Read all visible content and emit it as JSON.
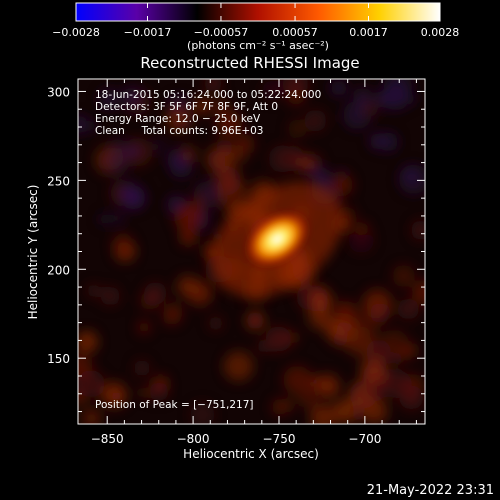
{
  "chart_data": {
    "type": "heatmap",
    "title": "Reconstructed RHESSI Image",
    "xlabel": "Heliocentric X (arcsec)",
    "ylabel": "Heliocentric Y (arcsec)",
    "xlim": [
      -867,
      -665
    ],
    "ylim": [
      113,
      307
    ],
    "x_ticks": [
      -850,
      -800,
      -750,
      -700
    ],
    "y_ticks": [
      150,
      200,
      250,
      300
    ],
    "x_tick_labels": [
      "−850",
      "−800",
      "−750",
      "−700"
    ],
    "y_tick_labels": [
      "150",
      "200",
      "250",
      "300"
    ],
    "colorbar": {
      "range": [
        -0.0028,
        0.0028
      ],
      "ticks": [
        -0.0028,
        -0.0017,
        -0.00057,
        0.00057,
        0.0017,
        0.0028
      ],
      "tick_labels": [
        "−0.0028",
        "−0.0017",
        "−0.00057",
        "0.00057",
        "0.0017",
        "0.0028"
      ],
      "units_label": "(photons cm⁻² s⁻¹ asec⁻²)",
      "colors": [
        "#0000ff",
        "#5a00a8",
        "#000000",
        "#b01000",
        "#ff5a00",
        "#ffd000",
        "#ffffff"
      ]
    },
    "annotations": [
      "18-Jun-2015 05:16:24.000 to 05:22:24.000",
      "Detectors: 3F 5F 6F 7F 8F 9F, Att 0",
      "Energy Range: 12.0 − 25.0 keV",
      "Clean     Total counts: 9.96E+03"
    ],
    "peak": {
      "x": -751,
      "y": 217,
      "label": "Position of Peak = [−751,217]"
    },
    "sources": [
      {
        "x": -751,
        "y": 217,
        "sigma_x": 7,
        "sigma_y": 4.5,
        "angle_deg": 35,
        "intensity": 0.0028
      }
    ]
  },
  "footer": {
    "timestamp": "21-May-2022 23:31"
  }
}
